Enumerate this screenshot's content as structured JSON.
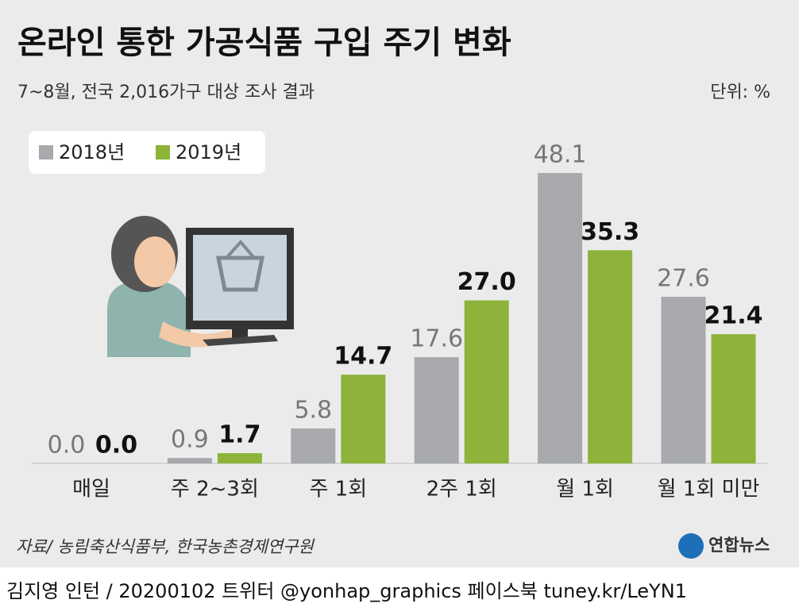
{
  "chart_data": {
    "type": "bar",
    "title": "온라인 통한 가공식품 구입 주기 변화",
    "subtitle": "7~8월, 전국 2,016가구 대상 조사 결과",
    "unit": "단위: %",
    "categories": [
      "매일",
      "주 2~3회",
      "주 1회",
      "2주 1회",
      "월 1회",
      "월 1회 미만"
    ],
    "series": [
      {
        "name": "2018년",
        "color": "#a7a9ac",
        "values": [
          0,
          0.9,
          5.8,
          17.6,
          48.1,
          27.6
        ],
        "value_labels": [
          "0.0",
          "0.9",
          "5.8",
          "17.6",
          "48.1",
          "27.6"
        ]
      },
      {
        "name": "2019년",
        "color": "#8db33a",
        "values": [
          0,
          1.7,
          14.7,
          27,
          35.3,
          21.4
        ],
        "value_labels": [
          "0.0",
          "1.7",
          "14.7",
          "27.0",
          "35.3",
          "21.4"
        ]
      }
    ],
    "source": "자료/ 농림축산식품부, 한국농촌경제연구원",
    "logo": "연합뉴스",
    "credit": "김지영 인턴 / 20200102 트위터 @yonhap_graphics 페이스북 tuney.kr/LeYN1"
  }
}
